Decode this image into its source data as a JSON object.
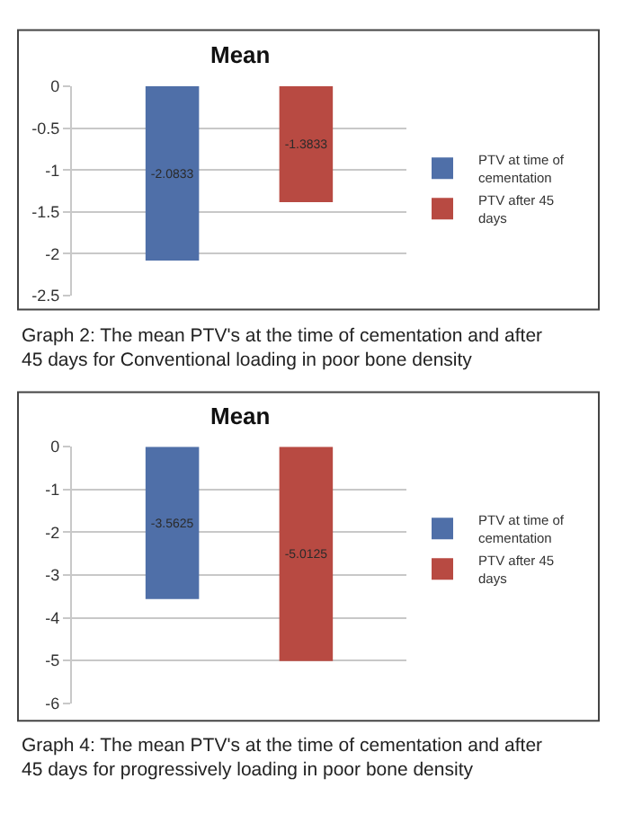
{
  "chart_data": [
    {
      "type": "bar",
      "title": "Mean",
      "categories": [
        null
      ],
      "series": [
        {
          "name": "PTV at time of cementation",
          "color": "#4f6fa8",
          "values": [
            -2.0833
          ]
        },
        {
          "name": "PTV after 45 days",
          "color": "#b84a42",
          "values": [
            -1.3833
          ]
        }
      ],
      "ylim": [
        -2.5,
        0
      ],
      "yticks": [
        0,
        -0.5,
        -1,
        -1.5,
        -2,
        -2.5
      ],
      "grid": "y",
      "legend": "right",
      "data_labels": true,
      "annotations": [
        "Graph 2: The mean PTV's at the time of cementation and after 45 days for Conventional loading in poor bone density"
      ]
    },
    {
      "type": "bar",
      "title": "Mean",
      "categories": [
        null
      ],
      "series": [
        {
          "name": "PTV at time of cementation",
          "color": "#4f6fa8",
          "values": [
            -3.5625
          ]
        },
        {
          "name": "PTV after 45 days",
          "color": "#b84a42",
          "values": [
            -5.0125
          ]
        }
      ],
      "ylim": [
        -6,
        0
      ],
      "yticks": [
        0,
        -1,
        -2,
        -3,
        -4,
        -5,
        -6
      ],
      "grid": "y",
      "legend": "right",
      "data_labels": true,
      "annotations": [
        "Graph 4: The mean PTV's at the time of cementation and after 45 days for progressively loading in poor bone density"
      ]
    }
  ]
}
